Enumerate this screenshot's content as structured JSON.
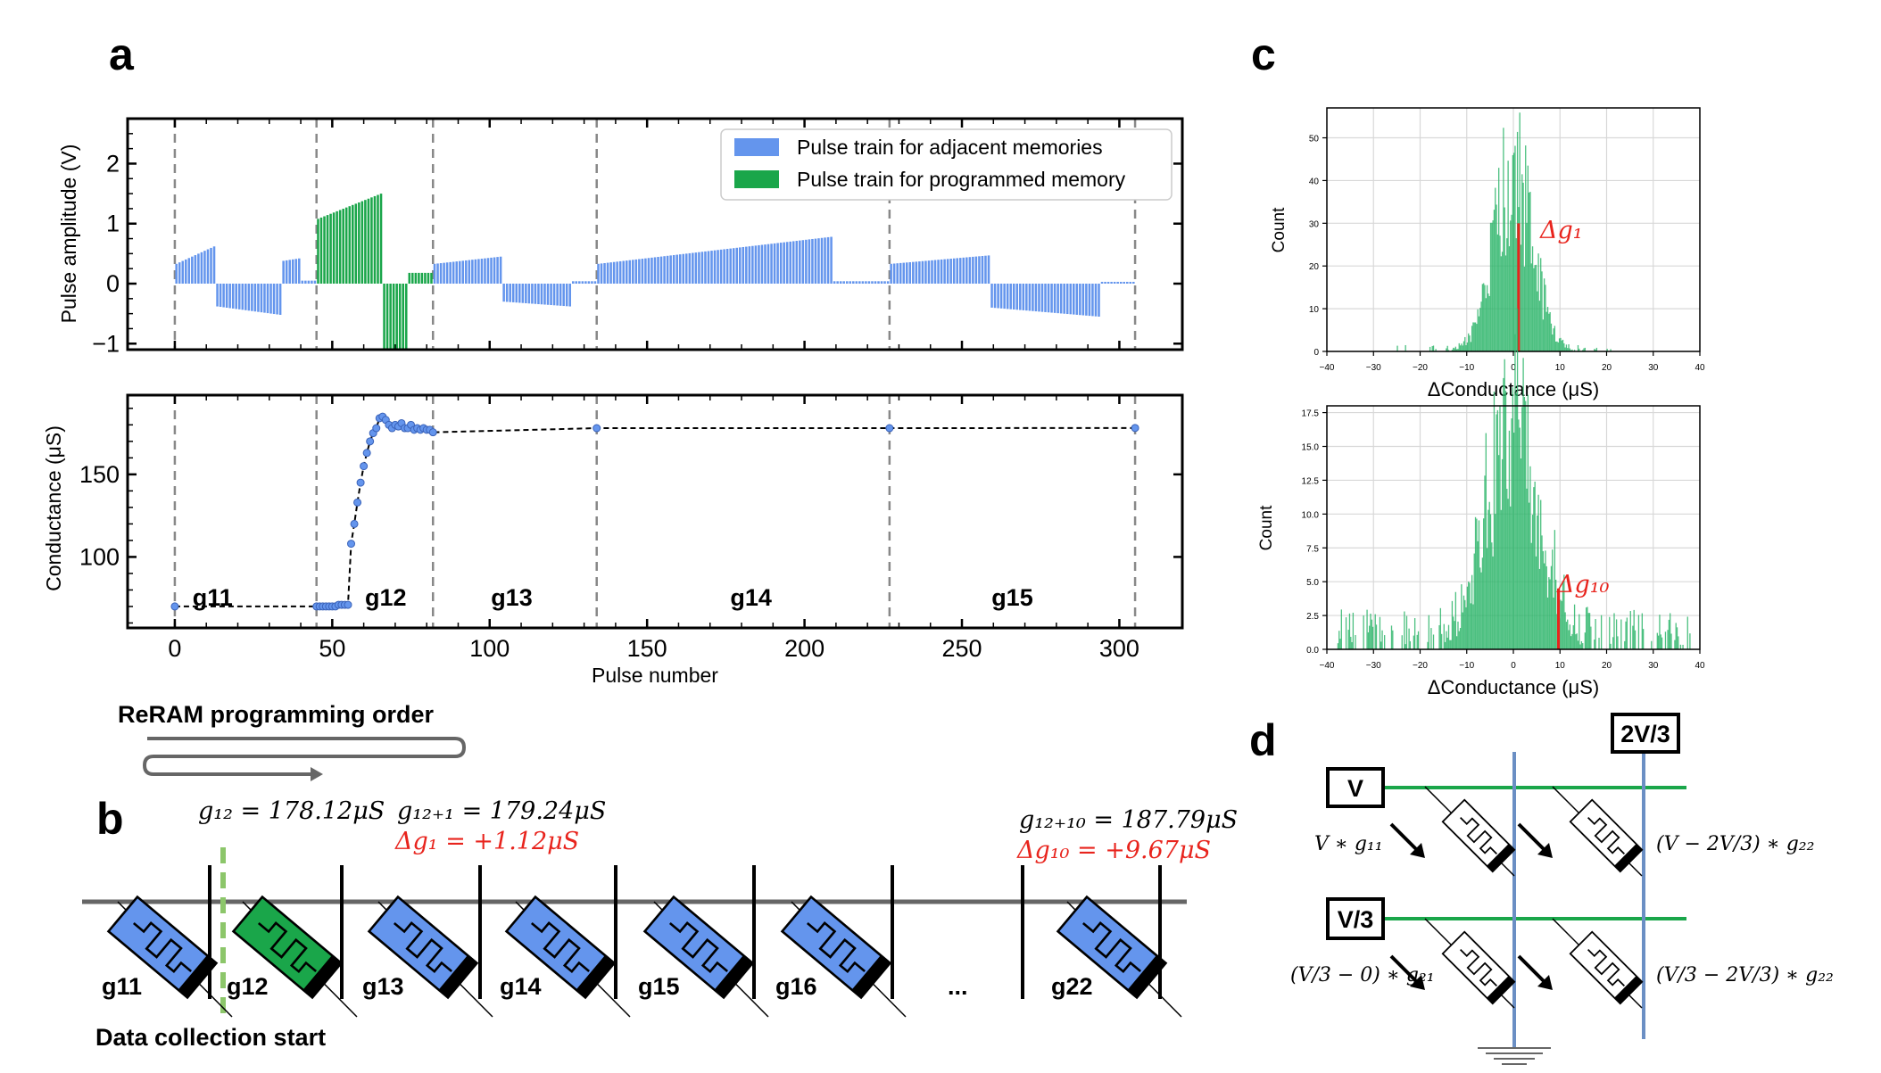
{
  "panel_labels": {
    "a": "a",
    "b": "b",
    "c": "c",
    "d": "d"
  },
  "colors": {
    "adjacent": "#6495ed",
    "programmed": "#1aa64a",
    "hist": "#2db56a",
    "red": "#e8241d",
    "line_green": "#1aa64a",
    "line_blue": "#6b8fc4"
  },
  "chart_data": [
    {
      "id": "pulse",
      "type": "bar",
      "xlabel": "",
      "ylabel": "Pulse amplitude (V)",
      "xlim": [
        -15,
        320
      ],
      "ylim": [
        -1.1,
        2.75
      ],
      "yticks": [
        "2",
        "1",
        "0",
        "−1"
      ],
      "ytick_values": [
        2,
        1,
        0,
        -1
      ],
      "legend": {
        "position": "top-right",
        "entries": [
          "Pulse train for adjacent memories",
          "Pulse train for programmed memory"
        ]
      },
      "dividers": [
        0,
        45,
        82,
        134,
        227,
        305
      ],
      "segments": [
        {
          "series": "adjacent",
          "from": 0,
          "to": 12,
          "v0": 0.33,
          "v1": 0.62
        },
        {
          "series": "adjacent",
          "from": 13,
          "to": 33,
          "v0": -0.38,
          "v1": -0.52
        },
        {
          "series": "adjacent",
          "from": 34,
          "to": 39,
          "v0": 0.38,
          "v1": 0.42
        },
        {
          "series": "adjacent",
          "from": 40,
          "to": 44,
          "v0": 0.05,
          "v1": 0.05
        },
        {
          "series": "programmed",
          "from": 45,
          "to": 65,
          "v0": 1.08,
          "v1": 1.5
        },
        {
          "series": "programmed",
          "from": 66,
          "to": 73,
          "v0": -1.08,
          "v1": -1.08
        },
        {
          "series": "programmed",
          "from": 74,
          "to": 81,
          "v0": 0.18,
          "v1": 0.18
        },
        {
          "series": "adjacent",
          "from": 82,
          "to": 103,
          "v0": 0.33,
          "v1": 0.45
        },
        {
          "series": "adjacent",
          "from": 104,
          "to": 125,
          "v0": -0.3,
          "v1": -0.38
        },
        {
          "series": "adjacent",
          "from": 126,
          "to": 133,
          "v0": 0.04,
          "v1": 0.04
        },
        {
          "series": "adjacent",
          "from": 134,
          "to": 208,
          "v0": 0.33,
          "v1": 0.78
        },
        {
          "series": "adjacent",
          "from": 209,
          "to": 226,
          "v0": 0.04,
          "v1": 0.04
        },
        {
          "series": "adjacent",
          "from": 227,
          "to": 258,
          "v0": 0.33,
          "v1": 0.47
        },
        {
          "series": "adjacent",
          "from": 259,
          "to": 293,
          "v0": -0.4,
          "v1": -0.55
        },
        {
          "series": "adjacent",
          "from": 294,
          "to": 304,
          "v0": 0.03,
          "v1": 0.03
        }
      ]
    },
    {
      "id": "conductance",
      "type": "line",
      "xlabel": "Pulse number",
      "ylabel": "Conductance (μS)",
      "xlim": [
        -15,
        320
      ],
      "ylim": [
        57,
        198
      ],
      "xticks": [
        "0",
        "50",
        "100",
        "150",
        "200",
        "250",
        "300"
      ],
      "xtick_values": [
        0,
        50,
        100,
        150,
        200,
        250,
        300
      ],
      "yticks": [
        "150",
        "100"
      ],
      "ytick_values": [
        150,
        100
      ],
      "dividers": [
        0,
        45,
        82,
        134,
        227,
        305
      ],
      "region_labels": [
        "g11",
        "g12",
        "g13",
        "g14",
        "g15"
      ],
      "region_label_x": [
        12,
        67,
        107,
        183,
        266
      ],
      "region_label_y": 76,
      "points_x": [
        0,
        45,
        46,
        47,
        48,
        49,
        50,
        51,
        52,
        53,
        54,
        55,
        56,
        57,
        58,
        59,
        60,
        61,
        62,
        63,
        64,
        65,
        66,
        67,
        68,
        69,
        70,
        71,
        72,
        73,
        74,
        75,
        76,
        77,
        78,
        79,
        80,
        81,
        82,
        134,
        227,
        305
      ],
      "points_y": [
        70,
        70,
        70,
        70,
        70,
        70,
        70,
        70,
        71,
        71,
        71,
        71,
        108,
        120,
        133,
        145,
        155,
        163,
        170,
        175,
        178,
        184,
        185,
        183,
        180,
        178,
        180,
        179,
        181,
        178,
        178,
        180,
        177,
        178,
        177,
        178,
        177,
        177,
        175.5,
        178,
        178,
        178.1
      ]
    },
    {
      "id": "hist1",
      "type": "bar",
      "xlabel": "ΔConductance (μS)",
      "ylabel": "Count",
      "xlim": [
        -40,
        40
      ],
      "ylim": [
        0,
        57
      ],
      "xticks": [
        "−40",
        "−30",
        "−20",
        "−10",
        "0",
        "10",
        "20",
        "30",
        "40"
      ],
      "xtick_values": [
        -40,
        -30,
        -20,
        -10,
        0,
        10,
        20,
        30,
        40
      ],
      "yticks": [
        "0",
        "10",
        "20",
        "30",
        "40",
        "50"
      ],
      "ytick_values": [
        0,
        10,
        20,
        30,
        40,
        50
      ],
      "sigma": 4.2,
      "peak": 42,
      "marker_x": 1.12,
      "marker_height": 30
    },
    {
      "id": "hist2",
      "type": "bar",
      "xlabel": "ΔConductance (μS)",
      "ylabel": "Count",
      "xlim": [
        -40,
        40
      ],
      "ylim": [
        0,
        18
      ],
      "xticks": [
        "−40",
        "−30",
        "−20",
        "−10",
        "0",
        "10",
        "20",
        "30",
        "40"
      ],
      "xtick_values": [
        -40,
        -30,
        -20,
        -10,
        0,
        10,
        20,
        30,
        40
      ],
      "yticks": [
        "0.0",
        "2.5",
        "5.0",
        "7.5",
        "10.0",
        "12.5",
        "15.0",
        "17.5"
      ],
      "ytick_values": [
        0,
        2.5,
        5,
        7.5,
        10,
        12.5,
        15,
        17.5
      ],
      "sigma": 5.5,
      "peak": 16.5,
      "marker_x": 9.67,
      "marker_height": 4.5
    }
  ],
  "panel_a": {
    "legend_adjacent": "Pulse train for adjacent memories",
    "legend_programmed": "Pulse train for programmed memory"
  },
  "panel_b": {
    "order_label": "ReRAM programming order",
    "eq1": "g₁₂ = 178.12μS",
    "eq2": "g₁₂₊₁ = 179.24μS",
    "eq2_delta": "Δg₁ = +1.12μS",
    "eq3": "g₁₂₊₁₀ = 187.79μS",
    "eq3_delta": "Δg₁₀ = +9.67μS",
    "cells": [
      "g11",
      "g12",
      "g13",
      "g14",
      "g15",
      "g16",
      "...",
      "g22"
    ],
    "collection_label": "Data collection start"
  },
  "panel_c": {
    "delta1": "Δg₁",
    "delta10": "Δg₁₀"
  },
  "panel_d": {
    "row1_label": "V",
    "row2_label": "V/3",
    "col_label": "2V/3",
    "eq_r1c1": "V ∗ g₁₁",
    "eq_r1c2": "(V − 2V/3) ∗ g₂₂",
    "eq_r2c1": "(V/3 − 0) ∗ g₂₁",
    "eq_r2c2": "(V/3 − 2V/3) ∗ g₂₂"
  }
}
